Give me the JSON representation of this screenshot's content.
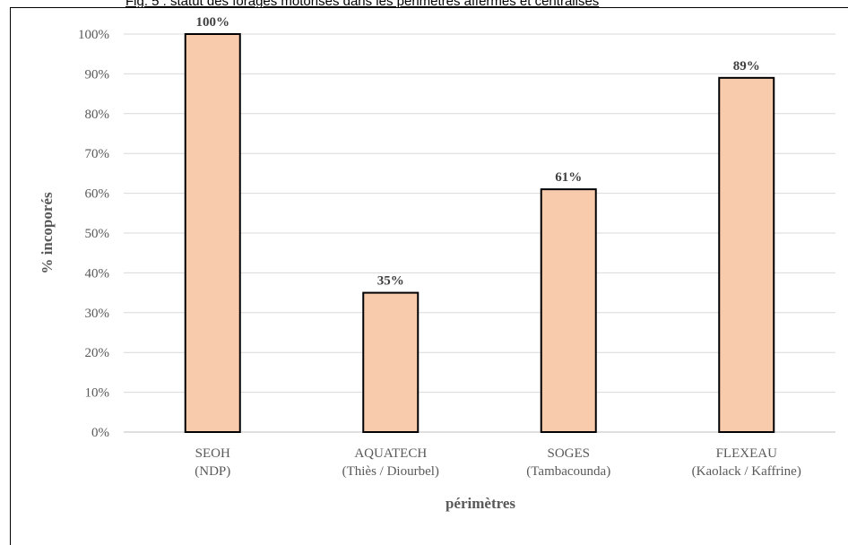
{
  "caption": "Fig. 5 : statut des forages motorisés dans les périmètres affermés et centralisés",
  "colors": {
    "bar_fill": "#F8CBAD",
    "bar_stroke": "#000000",
    "grid": "#D9D9D9"
  },
  "chart_data": {
    "type": "bar",
    "categories": [
      [
        "SEOH",
        "(NDP)"
      ],
      [
        "AQUATECH",
        "(Thiès / Diourbel)"
      ],
      [
        "SOGES",
        "(Tambacounda)"
      ],
      [
        "FLEXEAU",
        "(Kaolack / Kaffrine)"
      ]
    ],
    "values": [
      100,
      35,
      61,
      89
    ],
    "data_labels": [
      "100%",
      "35%",
      "61%",
      "89%"
    ],
    "yticks": [
      "0%",
      "10%",
      "20%",
      "30%",
      "40%",
      "50%",
      "60%",
      "70%",
      "80%",
      "90%",
      "100%"
    ],
    "ylim": [
      0,
      100
    ],
    "xlabel": "périmètres",
    "ylabel": "% incoporés",
    "grid": true,
    "legend": "none"
  }
}
